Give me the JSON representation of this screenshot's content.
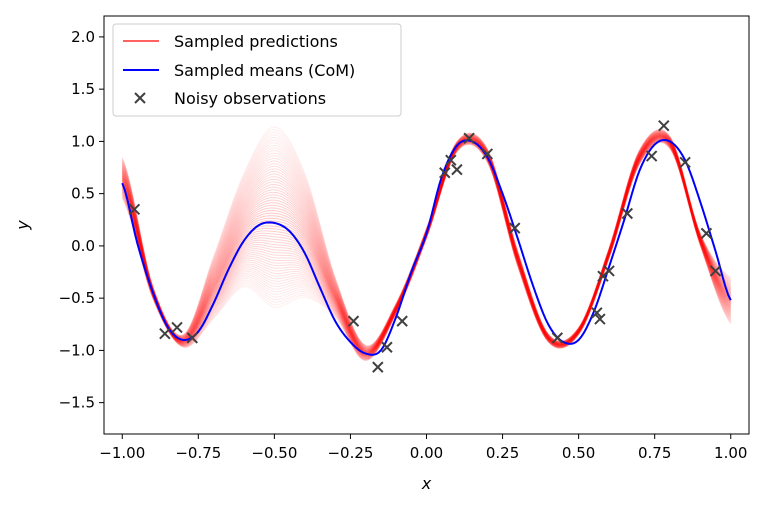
{
  "chart_data": {
    "type": "line",
    "title": "",
    "xlabel": "x",
    "ylabel": "y",
    "xlim": [
      -1.06,
      1.06
    ],
    "ylim": [
      -1.8,
      2.2
    ],
    "xticks": [
      -1.0,
      -0.75,
      -0.5,
      -0.25,
      0.0,
      0.25,
      0.5,
      0.75,
      1.0
    ],
    "xtick_labels": [
      "−1.00",
      "−0.75",
      "−0.50",
      "−0.25",
      "0.00",
      "0.25",
      "0.50",
      "0.75",
      "1.00"
    ],
    "yticks": [
      -1.5,
      -1.0,
      -0.5,
      0.0,
      0.5,
      1.0,
      1.5,
      2.0
    ],
    "ytick_labels": [
      "−1.5",
      "−1.0",
      "−0.5",
      "0.0",
      "0.5",
      "1.0",
      "1.5",
      "2.0"
    ],
    "grid": false,
    "legend_position": "top-left",
    "series": [
      {
        "name": "Sampled predictions",
        "kind": "band-of-lines",
        "color": "#ff0000",
        "x": [
          -1.0,
          -0.9,
          -0.8,
          -0.7,
          -0.6,
          -0.5,
          -0.4,
          -0.3,
          -0.2,
          -0.1,
          0.0,
          0.1,
          0.2,
          0.3,
          0.4,
          0.5,
          0.6,
          0.7,
          0.8,
          0.9,
          1.0
        ],
        "lower": [
          0.45,
          -0.5,
          -0.97,
          -0.7,
          -0.4,
          -0.6,
          -0.5,
          -0.68,
          -1.1,
          -0.65,
          0.07,
          0.9,
          0.8,
          -0.2,
          -0.92,
          -0.85,
          -0.12,
          0.78,
          0.93,
          0.0,
          -0.75
        ],
        "upper": [
          0.85,
          -0.38,
          -0.85,
          -0.1,
          0.7,
          1.15,
          0.7,
          -0.3,
          -0.95,
          -0.55,
          0.17,
          1.0,
          0.93,
          -0.05,
          -0.84,
          -0.78,
          -0.02,
          0.92,
          1.05,
          0.12,
          -0.3
        ]
      },
      {
        "name": "Sampled means (CoM)",
        "kind": "line",
        "color": "#0000ff",
        "x": [
          -1.0,
          -0.95,
          -0.9,
          -0.85,
          -0.8,
          -0.75,
          -0.7,
          -0.65,
          -0.6,
          -0.55,
          -0.5,
          -0.45,
          -0.4,
          -0.35,
          -0.3,
          -0.25,
          -0.2,
          -0.15,
          -0.1,
          -0.05,
          0.0,
          0.05,
          0.1,
          0.15,
          0.2,
          0.25,
          0.3,
          0.35,
          0.4,
          0.45,
          0.5,
          0.55,
          0.6,
          0.65,
          0.7,
          0.75,
          0.8,
          0.85,
          0.9,
          0.95,
          1.0
        ],
        "values": [
          0.6,
          0.02,
          -0.44,
          -0.78,
          -0.9,
          -0.82,
          -0.55,
          -0.22,
          0.05,
          0.2,
          0.22,
          0.14,
          -0.07,
          -0.4,
          -0.72,
          -0.92,
          -1.03,
          -1.0,
          -0.68,
          -0.25,
          0.12,
          0.66,
          0.96,
          1.0,
          0.85,
          0.5,
          0.07,
          -0.38,
          -0.75,
          -0.92,
          -0.9,
          -0.63,
          -0.2,
          0.25,
          0.72,
          0.97,
          1.0,
          0.82,
          0.42,
          -0.05,
          -0.52
        ]
      },
      {
        "name": "Noisy observations",
        "kind": "scatter",
        "marker": "x",
        "color": "#404040",
        "points": [
          [
            -0.96,
            0.35
          ],
          [
            -0.86,
            -0.84
          ],
          [
            -0.82,
            -0.78
          ],
          [
            -0.77,
            -0.88
          ],
          [
            -0.24,
            -0.72
          ],
          [
            -0.16,
            -1.16
          ],
          [
            -0.13,
            -0.97
          ],
          [
            -0.08,
            -0.72
          ],
          [
            0.06,
            0.7
          ],
          [
            0.08,
            0.82
          ],
          [
            0.1,
            0.73
          ],
          [
            0.14,
            1.03
          ],
          [
            0.2,
            0.88
          ],
          [
            0.29,
            0.17
          ],
          [
            0.43,
            -0.88
          ],
          [
            0.56,
            -0.64
          ],
          [
            0.57,
            -0.7
          ],
          [
            0.58,
            -0.29
          ],
          [
            0.6,
            -0.24
          ],
          [
            0.66,
            0.31
          ],
          [
            0.74,
            0.86
          ],
          [
            0.78,
            1.15
          ],
          [
            0.85,
            0.8
          ],
          [
            0.92,
            0.12
          ],
          [
            0.95,
            -0.24
          ]
        ]
      }
    ]
  }
}
